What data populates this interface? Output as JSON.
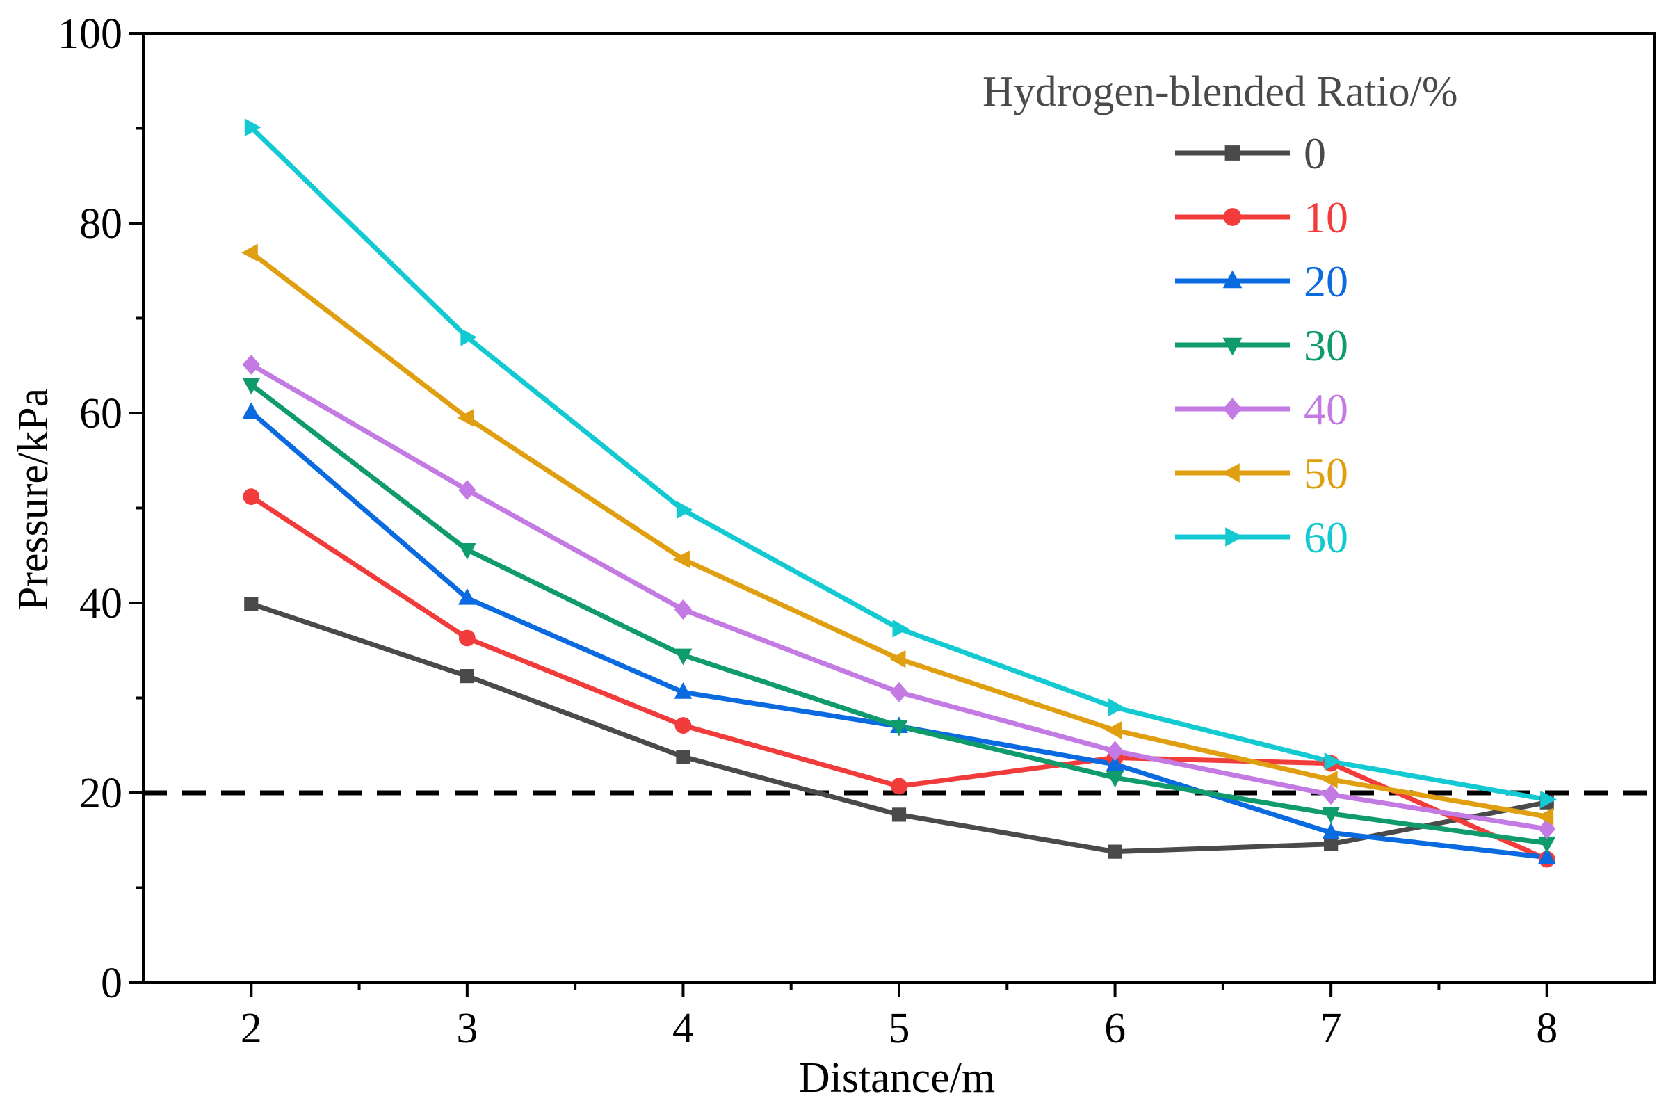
{
  "chart_data": {
    "type": "line",
    "xlabel": "Distance/m",
    "ylabel": "Pressure/kPa",
    "xlim": [
      1.5,
      8.5
    ],
    "ylim": [
      0,
      100
    ],
    "x": [
      2,
      3,
      4,
      5,
      6,
      7,
      8
    ],
    "x_tick_labels": [
      "2",
      "3",
      "4",
      "5",
      "6",
      "7",
      "8"
    ],
    "y_ticks": [
      0,
      20,
      40,
      60,
      80,
      100
    ],
    "y_tick_labels": [
      "0",
      "20",
      "40",
      "60",
      "80",
      "100"
    ],
    "grid": false,
    "legend_title": "Hydrogen-blended Ratio/%",
    "legend_position": "top-right",
    "reference_line": {
      "y": 20,
      "style": "dashed",
      "color": "#000000"
    },
    "series": [
      {
        "name": "0",
        "color": "#4a4a4a",
        "marker": "square",
        "values": [
          39.9,
          32.3,
          23.8,
          17.7,
          13.8,
          14.6,
          19.0
        ]
      },
      {
        "name": "10",
        "color": "#f23c3c",
        "marker": "circle",
        "values": [
          51.2,
          36.3,
          27.1,
          20.7,
          23.7,
          23.1,
          13.0
        ]
      },
      {
        "name": "20",
        "color": "#0a6be0",
        "marker": "triangle-up",
        "values": [
          60.1,
          40.5,
          30.6,
          27.0,
          23.0,
          15.8,
          13.2
        ]
      },
      {
        "name": "30",
        "color": "#0f9b6c",
        "marker": "triangle-down",
        "values": [
          63.0,
          45.6,
          34.5,
          27.0,
          21.6,
          17.8,
          14.7
        ]
      },
      {
        "name": "40",
        "color": "#c37be3",
        "marker": "diamond",
        "values": [
          65.1,
          51.9,
          39.3,
          30.6,
          24.4,
          19.8,
          16.2
        ]
      },
      {
        "name": "50",
        "color": "#e09f10",
        "marker": "triangle-left",
        "values": [
          76.9,
          59.5,
          44.6,
          34.1,
          26.6,
          21.4,
          17.5
        ]
      },
      {
        "name": "60",
        "color": "#14cad2",
        "marker": "triangle-right",
        "values": [
          90.1,
          68.0,
          49.8,
          37.3,
          29.0,
          23.3,
          19.3
        ]
      }
    ]
  }
}
